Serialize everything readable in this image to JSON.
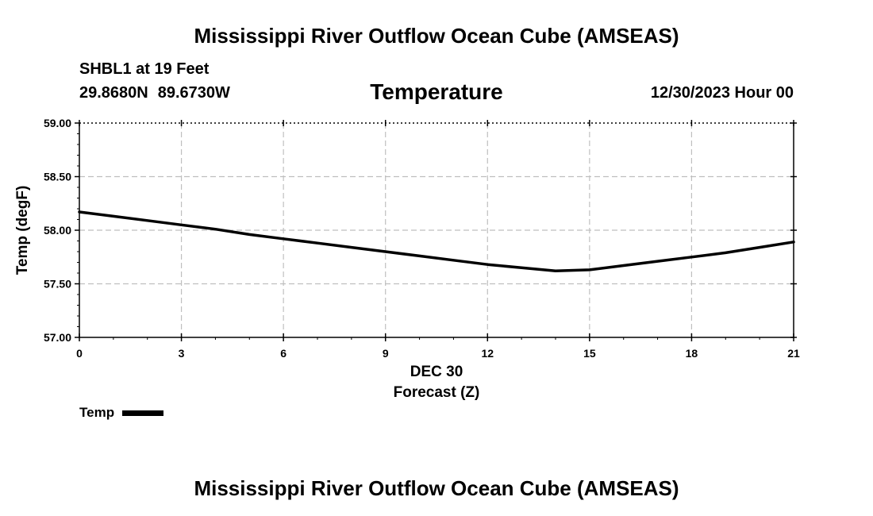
{
  "header": {
    "title": "Mississippi River Outflow Ocean Cube (AMSEAS)",
    "station": "SHBL1 at 19 Feet",
    "lat": "29.8680N",
    "lon": "89.6730W",
    "subtitle": "Temperature",
    "datetime": "12/30/2023 Hour 00"
  },
  "footer": {
    "title": "Mississippi River Outflow Ocean Cube (AMSEAS)"
  },
  "legend": {
    "label": "Temp"
  },
  "chart_data": {
    "type": "line",
    "title": "Temperature",
    "xlabel": "Forecast (Z)",
    "xlabel_date": "DEC 30",
    "ylabel": "Temp (degF)",
    "xlim": [
      0,
      21
    ],
    "ylim": [
      57.0,
      59.0
    ],
    "x_ticks": [
      0,
      3,
      6,
      9,
      12,
      15,
      18,
      21
    ],
    "x_tick_labels": [
      "0",
      "3",
      "6",
      "9",
      "12",
      "15",
      "18",
      "21"
    ],
    "y_ticks": [
      57.0,
      57.5,
      58.0,
      58.5,
      59.0
    ],
    "y_tick_labels": [
      "57.00",
      "57.50",
      "58.00",
      "58.50",
      "59.00"
    ],
    "grid": true,
    "series": [
      {
        "name": "Temp",
        "color": "#000000",
        "x": [
          0,
          1,
          2,
          3,
          4,
          5,
          6,
          7,
          8,
          9,
          10,
          11,
          12,
          13,
          14,
          15,
          16,
          17,
          18,
          19,
          20,
          21
        ],
        "values": [
          58.17,
          58.13,
          58.09,
          58.05,
          58.01,
          57.96,
          57.92,
          57.88,
          57.84,
          57.8,
          57.76,
          57.72,
          57.68,
          57.65,
          57.62,
          57.63,
          57.67,
          57.71,
          57.75,
          57.79,
          57.84,
          57.89
        ]
      }
    ]
  }
}
